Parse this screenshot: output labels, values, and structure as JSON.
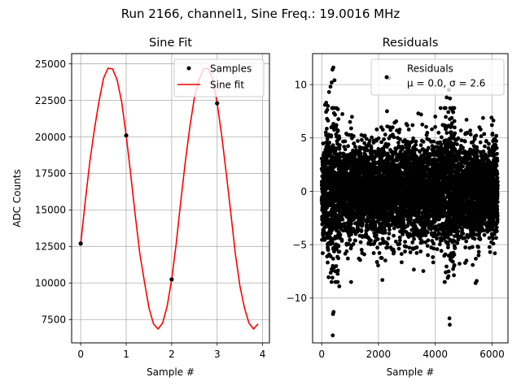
{
  "figure": {
    "suptitle": "Run 2166, channel1, Sine Freq.: 19.0016 MHz"
  },
  "colors": {
    "fit": "#ff0000",
    "points": "#000000",
    "grid": "#b0b0b0",
    "legend_border": "#cccccc"
  },
  "chart_data": [
    {
      "type": "line",
      "title": "Sine Fit",
      "xlabel": "Sample #",
      "ylabel": "ADC Counts",
      "xlim": [
        -0.2,
        4.15
      ],
      "ylim": [
        5900,
        25700
      ],
      "xticks": [
        0,
        1,
        2,
        3,
        4
      ],
      "yticks": [
        7500,
        10000,
        12500,
        15000,
        17500,
        20000,
        22500,
        25000
      ],
      "grid": true,
      "legend": {
        "placement": "upper right",
        "entries": [
          "Samples",
          "Sine fit"
        ]
      },
      "series": [
        {
          "name": "Samples",
          "kind": "scatter",
          "x": [
            0,
            1,
            2,
            3
          ],
          "y": [
            12700,
            20100,
            10250,
            22300
          ]
        },
        {
          "name": "Sine fit",
          "kind": "line",
          "x": [
            0,
            0.1,
            0.2,
            0.3,
            0.4,
            0.5,
            0.6,
            0.7,
            0.8,
            0.9,
            1.0,
            1.1,
            1.2,
            1.3,
            1.4,
            1.5,
            1.6,
            1.7,
            1.8,
            1.9,
            2.0,
            2.1,
            2.2,
            2.3,
            2.4,
            2.5,
            2.6,
            2.7,
            2.8,
            2.9,
            3.0,
            3.1,
            3.2,
            3.3,
            3.4,
            3.5,
            3.6,
            3.7,
            3.8,
            3.9
          ],
          "y": [
            12700,
            15600,
            18300,
            20500,
            22400,
            24000,
            24700,
            24650,
            23900,
            22400,
            20100,
            17400,
            14600,
            12000,
            10100,
            8300,
            7200,
            6850,
            7250,
            8400,
            10250,
            12700,
            15600,
            18300,
            20700,
            22700,
            23900,
            24650,
            24700,
            24000,
            22300,
            20100,
            17500,
            14800,
            12000,
            9800,
            8300,
            7250,
            6850,
            7200
          ]
        }
      ]
    },
    {
      "type": "scatter",
      "title": "Residuals",
      "xlabel": "Sample #",
      "ylabel": "",
      "xlim": [
        -320,
        6560
      ],
      "ylim": [
        -14.2,
        12.9
      ],
      "xticks": [
        0,
        2000,
        4000,
        6000
      ],
      "yticks": [
        -10,
        -5,
        0,
        5,
        10
      ],
      "grid": true,
      "legend": {
        "placement": "upper right",
        "entries": [
          "Residuals",
          "μ = 0.0, σ = 2.6"
        ]
      },
      "stats": {
        "mu": 0.0,
        "sigma": 2.6,
        "n_points": 6250
      },
      "outliers": {
        "x": [
          390,
          400,
          420,
          260,
          310,
          350,
          160,
          220,
          380,
          410,
          450,
          1040,
          1000,
          2300,
          4480,
          4520,
          4600,
          4500,
          4510,
          5420,
          5980,
          2370,
          3500,
          3400,
          4400,
          4000,
          2100,
          3200,
          5100,
          5460,
          6150,
          1500,
          620,
          120
        ],
        "y": [
          -13.5,
          -11.5,
          -11.3,
          9.3,
          9.8,
          10.2,
          8.3,
          8.0,
          11.4,
          11.6,
          10.4,
          5.9,
          6.5,
          7.5,
          9.5,
          8.7,
          7.6,
          -11.9,
          -12.5,
          -8.6,
          6.9,
          10.6,
          7.2,
          7.3,
          8.8,
          7.0,
          6.0,
          6.2,
          6.7,
          -8.4,
          5.2,
          -5.9,
          -8.9,
          8.1
        ]
      }
    }
  ]
}
